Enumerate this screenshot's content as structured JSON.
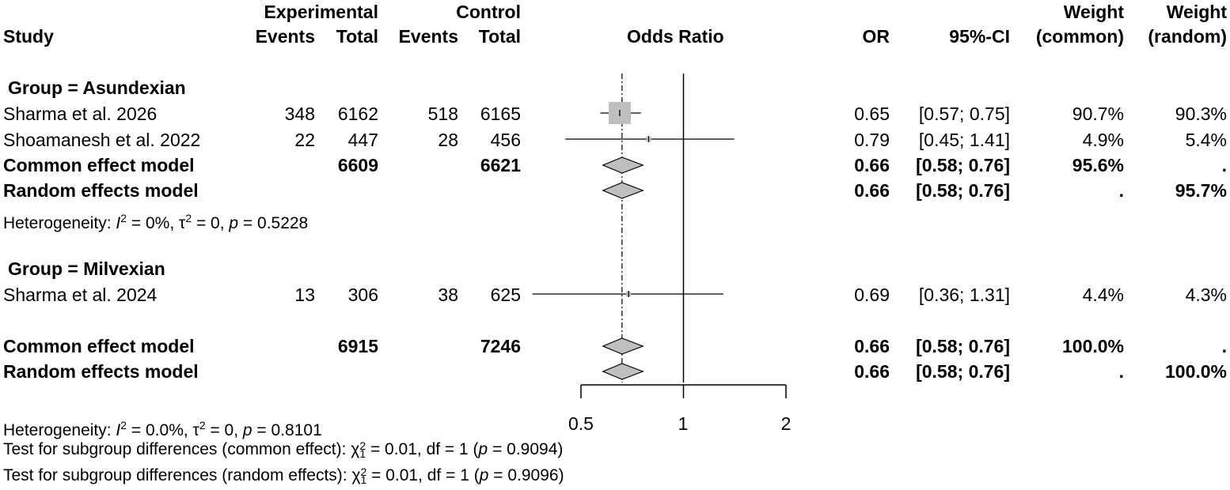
{
  "headers": {
    "study": "Study",
    "experimental": "Experimental",
    "control": "Control",
    "events": "Events",
    "total": "Total",
    "odds_ratio": "Odds Ratio",
    "or": "OR",
    "ci": "95%-CI",
    "weight": "Weight",
    "weight_common": "(common)",
    "weight_random": "(random)"
  },
  "chart_data": {
    "type": "forest",
    "xlabel": "",
    "xscale": "log",
    "xlim": [
      0.5,
      2
    ],
    "xticks": [
      0.5,
      1,
      2
    ],
    "xtick_labels": [
      "0.5",
      "1",
      "2"
    ],
    "null_line": 1,
    "pooled_line": 0.66,
    "colors": {
      "square": "#bfbfbf",
      "diamond": "#bfbfbf",
      "line": "#000000"
    },
    "groups": [
      {
        "label": "Group  = Asundexian",
        "studies": [
          {
            "name": "Sharma et al. 2026",
            "exp_events": "348",
            "exp_total": "6162",
            "ctrl_events": "518",
            "ctrl_total": "6165",
            "or": 0.65,
            "lo": 0.57,
            "hi": 0.75,
            "or_text": "0.65",
            "ci_text": "[0.57; 0.75]",
            "w_common": "90.7%",
            "w_random": "90.3%",
            "weight": 90.7
          },
          {
            "name": "Shoamanesh et al. 2022",
            "exp_events": "22",
            "exp_total": "447",
            "ctrl_events": "28",
            "ctrl_total": "456",
            "or": 0.79,
            "lo": 0.45,
            "hi": 1.41,
            "or_text": "0.79",
            "ci_text": "[0.45; 1.41]",
            "w_common": "4.9%",
            "w_random": "5.4%",
            "weight": 4.9
          }
        ],
        "common": {
          "name": "Common effect model",
          "exp_total": "6609",
          "ctrl_total": "6621",
          "or": 0.66,
          "lo": 0.58,
          "hi": 0.76,
          "or_text": "0.66",
          "ci_text": "[0.58; 0.76]",
          "w_common": "95.6%",
          "w_random": "."
        },
        "random": {
          "name": "Random effects model",
          "or": 0.66,
          "lo": 0.58,
          "hi": 0.76,
          "or_text": "0.66",
          "ci_text": "[0.58; 0.76]",
          "w_common": ".",
          "w_random": "95.7%"
        },
        "het": {
          "pre": "Heterogeneity: ",
          "i": "I",
          "sq": "2",
          "mid1": " = 0%, ",
          "tau": "τ",
          "sq2": "2",
          "mid2": " = 0, ",
          "p": "p",
          "end": " = 0.5228"
        }
      },
      {
        "label": "Group  = Milvexian",
        "studies": [
          {
            "name": "Sharma et al. 2024",
            "exp_events": "13",
            "exp_total": "306",
            "ctrl_events": "38",
            "ctrl_total": "625",
            "or": 0.69,
            "lo": 0.36,
            "hi": 1.31,
            "or_text": "0.69",
            "ci_text": "[0.36; 1.31]",
            "w_common": "4.4%",
            "w_random": "4.3%",
            "weight": 4.4
          }
        ]
      }
    ],
    "overall": {
      "common": {
        "name": "Common effect model",
        "exp_total": "6915",
        "ctrl_total": "7246",
        "or": 0.66,
        "lo": 0.58,
        "hi": 0.76,
        "or_text": "0.66",
        "ci_text": "[0.58; 0.76]",
        "w_common": "100.0%",
        "w_random": "."
      },
      "random": {
        "name": "Random effects model",
        "or": 0.66,
        "lo": 0.58,
        "hi": 0.76,
        "or_text": "0.66",
        "ci_text": "[0.58; 0.76]",
        "w_common": ".",
        "w_random": "100.0%"
      }
    }
  },
  "footer": {
    "het": {
      "pre": "Heterogeneity: ",
      "i": "I",
      "sq": "2",
      "mid1": " = 0.0%, ",
      "tau": "τ",
      "sq2": "2",
      "mid2": " = 0, ",
      "p": "p",
      "end": " = 0.8101"
    },
    "test_common": {
      "pre": "Test for subgroup differences (common effect): ",
      "chi": "χ",
      "sub": "1",
      "sup": "2",
      "mid": " = 0.01, df = 1 (",
      "p": "p",
      "end": " = 0.9094)"
    },
    "test_random": {
      "pre": "Test for subgroup differences (random effects): ",
      "chi": "χ",
      "sub": "1",
      "sup": "2",
      "mid": " = 0.01, df = 1 (",
      "p": "p",
      "end": " = 0.9096)"
    }
  }
}
